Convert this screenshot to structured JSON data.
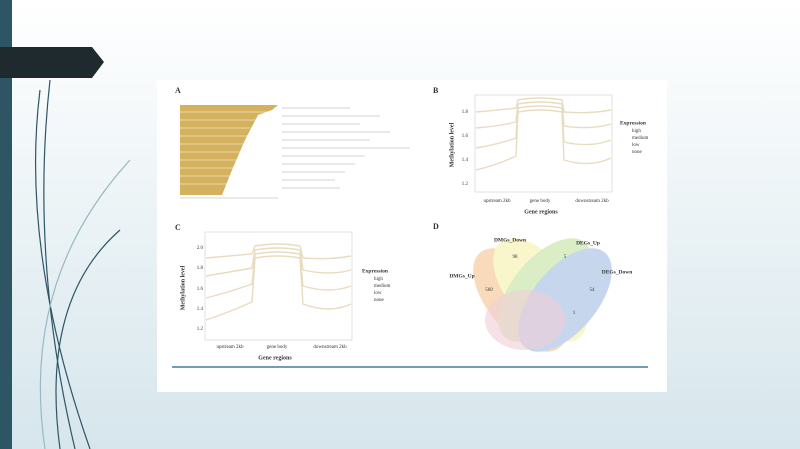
{
  "panels": {
    "a": {
      "label": "A"
    },
    "b": {
      "label": "B",
      "y_axis_label": "Methylation level",
      "y_ticks": [
        "1.2",
        "1.4",
        "1.6",
        "1.8"
      ],
      "x_ticks": [
        "upstream 2kb",
        "gene body",
        "downstream 2kb"
      ],
      "x_axis_label": "Gene regions",
      "legend_title": "Expression",
      "legend_items": [
        "high",
        "medium",
        "low",
        "none"
      ]
    },
    "c": {
      "label": "C",
      "y_axis_label": "Methylation level",
      "y_ticks": [
        "1.2",
        "1.4",
        "1.6",
        "1.8",
        "2.0"
      ],
      "x_ticks": [
        "upstream 2kb",
        "gene body",
        "downstream 2kb"
      ],
      "x_axis_label": "Gene regions",
      "legend_title": "Expression",
      "legend_items": [
        "high",
        "medium",
        "low",
        "none"
      ]
    },
    "d": {
      "label": "D",
      "sets": [
        "DMGs_Down",
        "DEGs_Up",
        "DMGs_Up",
        "DEGs_Down"
      ],
      "counts": [
        "98",
        "5",
        "560",
        "54",
        "1"
      ]
    }
  }
}
